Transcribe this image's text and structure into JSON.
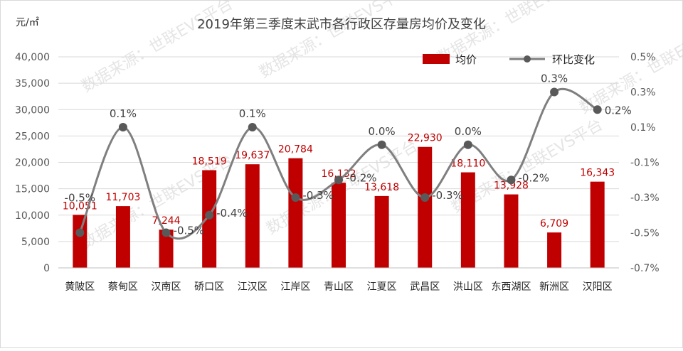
{
  "chart_data": {
    "type": "bar+line",
    "title": "2019年第三季度末武市各行政区存量房均价及变化",
    "unit_label": "元/㎡",
    "categories": [
      "黄陂区",
      "蔡甸区",
      "汉南区",
      "硚口区",
      "江汉区",
      "江岸区",
      "青山区",
      "江夏区",
      "武昌区",
      "洪山区",
      "东西湖区",
      "新洲区",
      "汉阳区"
    ],
    "series": [
      {
        "name": "均价",
        "type": "bar",
        "axis": "left",
        "color": "#c00000",
        "values": [
          10051,
          11703,
          7244,
          18519,
          19637,
          20784,
          16132,
          13618,
          22930,
          18110,
          13928,
          6709,
          16343
        ],
        "labels": [
          "10,051",
          "11,703",
          "7,244",
          "18,519",
          "19,637",
          "20,784",
          "16,132",
          "13,618",
          "22,930",
          "18,110",
          "13,928",
          "6,709",
          "16,343"
        ]
      },
      {
        "name": "环比变化",
        "type": "line",
        "axis": "right",
        "color": "#7f7f7f",
        "values": [
          -0.5,
          0.1,
          -0.5,
          -0.4,
          0.1,
          -0.3,
          -0.2,
          0.0,
          -0.3,
          0.0,
          -0.2,
          0.3,
          0.2
        ],
        "labels": [
          "-0.5%",
          "0.1%",
          "-0.5%",
          "-0.4%",
          "0.1%",
          "-0.3%",
          "-0.2%",
          "0.0%",
          "-0.3%",
          "0.0%",
          "-0.2%",
          "0.3%",
          "0.2%"
        ]
      }
    ],
    "left_axis": {
      "ylim": [
        0,
        40000
      ],
      "ticks": [
        0,
        5000,
        10000,
        15000,
        20000,
        25000,
        30000,
        35000,
        40000
      ],
      "tick_labels": [
        "0",
        "5,000",
        "10,000",
        "15,000",
        "20,000",
        "25,000",
        "30,000",
        "35,000",
        "40,000"
      ]
    },
    "right_axis": {
      "ticks": [
        -0.7,
        -0.5,
        -0.3,
        -0.1,
        0.1,
        0.3,
        0.5
      ],
      "tick_labels": [
        "-0.7%",
        "-0.5%",
        "-0.3%",
        "-0.1%",
        "0.1%",
        "0.3%",
        "0.5%"
      ]
    },
    "grid": true,
    "legend_position": "top-right",
    "watermark": "数据来源：世联EVS平台"
  }
}
